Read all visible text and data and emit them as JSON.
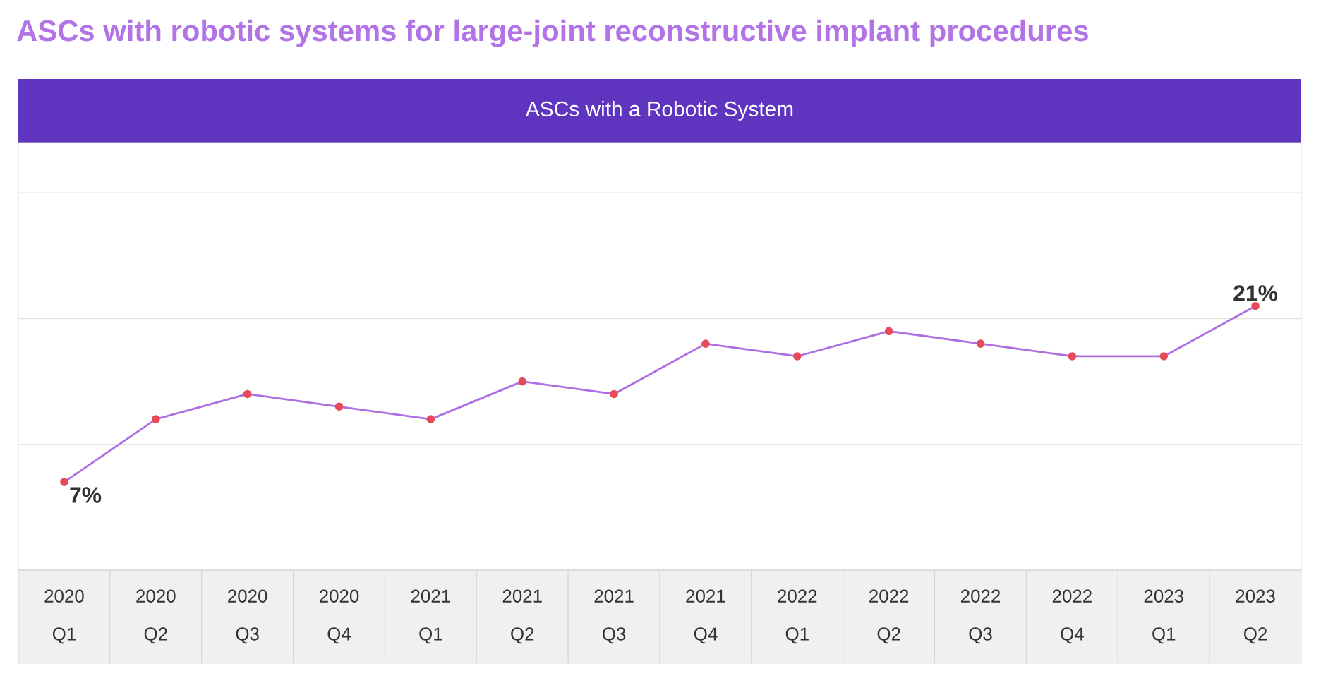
{
  "chart_data": {
    "type": "line",
    "title": "ASCs with robotic systems for large-joint reconstructive implant procedures",
    "subtitle": "ASCs with a Robotic System",
    "categories": [
      "2020 Q1",
      "2020 Q2",
      "2020 Q3",
      "2020 Q4",
      "2021 Q1",
      "2021 Q2",
      "2021 Q3",
      "2021 Q4",
      "2022 Q1",
      "2022 Q2",
      "2022 Q3",
      "2022 Q4",
      "2023 Q1",
      "2023 Q2"
    ],
    "series": [
      {
        "color": "#ad6ee3",
        "values": [
          7,
          12,
          14,
          13,
          12,
          15,
          14,
          18,
          17,
          19,
          18,
          17,
          17,
          21
        ],
        "value_labels": [
          "7%",
          null,
          null,
          null,
          null,
          null,
          null,
          null,
          null,
          null,
          null,
          null,
          null,
          "21%"
        ]
      }
    ],
    "ylim": [
      0,
      34
    ],
    "yticks": [
      {
        "value": 10,
        "label": null
      },
      {
        "value": 20,
        "label": null
      },
      {
        "value": 30,
        "label": null
      }
    ],
    "grid": "y",
    "marker": "circle",
    "line_style": "solid",
    "tick_labels": "x"
  }
}
